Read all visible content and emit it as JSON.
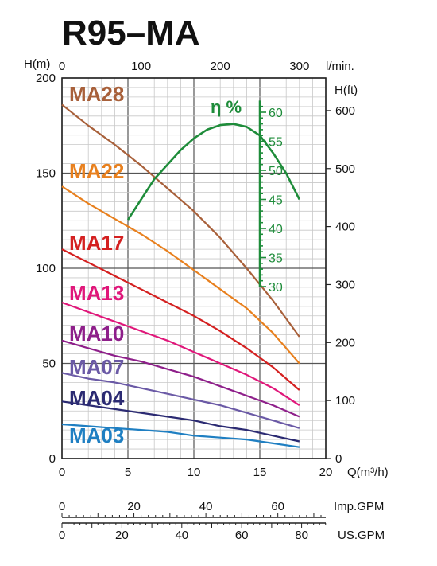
{
  "chart_data": {
    "type": "line",
    "title": "R95–MA",
    "xlabel": "Q(m³/h)",
    "x_top_label": "l/min.",
    "ylabel_left": "H(m)",
    "ylabel_right": "H(ft)",
    "xlim": [
      0,
      20
    ],
    "ylim": [
      0,
      200
    ],
    "y2lim_ft": [
      0,
      656.2
    ],
    "grid": true,
    "x_ticks": [
      "0",
      "5",
      "10",
      "15",
      "20"
    ],
    "x_top_ticks": [
      "0",
      "100",
      "200",
      "300"
    ],
    "y_ticks": [
      "0",
      "50",
      "100",
      "150",
      "200"
    ],
    "y_right_ticks": [
      "0",
      "100",
      "200",
      "300",
      "400",
      "500",
      "600"
    ],
    "series": [
      {
        "name": "MA28",
        "color": "#a8603a",
        "x": [
          0,
          2,
          4,
          6,
          8,
          10,
          12,
          14,
          16,
          18
        ],
        "y": [
          186,
          175,
          165,
          154,
          142,
          130,
          116,
          100,
          83,
          64
        ]
      },
      {
        "name": "MA22",
        "color": "#e8801e",
        "x": [
          0,
          2,
          4,
          6,
          8,
          10,
          12,
          14,
          16,
          18
        ],
        "y": [
          143,
          134,
          126,
          118,
          109,
          99,
          89,
          79,
          66,
          50
        ]
      },
      {
        "name": "MA17",
        "color": "#d42020",
        "x": [
          0,
          2,
          4,
          6,
          8,
          10,
          12,
          14,
          16,
          18
        ],
        "y": [
          110,
          103,
          96,
          89,
          82,
          75,
          67,
          58,
          48,
          36
        ]
      },
      {
        "name": "MA13",
        "color": "#e0177a",
        "x": [
          0,
          2,
          4,
          6,
          8,
          10,
          12,
          14,
          16,
          18
        ],
        "y": [
          82,
          77,
          72,
          67,
          62,
          56,
          50,
          44,
          37,
          28
        ]
      },
      {
        "name": "MA10",
        "color": "#8e1f8a",
        "x": [
          0,
          2,
          4,
          6,
          8,
          10,
          12,
          14,
          16,
          18
        ],
        "y": [
          62,
          58,
          54,
          51,
          47,
          43,
          38,
          33,
          28,
          22
        ]
      },
      {
        "name": "MA07",
        "color": "#6b5aa6",
        "x": [
          0,
          2,
          4,
          6,
          8,
          10,
          12,
          14,
          16,
          18
        ],
        "y": [
          45,
          42,
          40,
          37,
          34,
          31,
          28,
          24,
          20,
          16
        ]
      },
      {
        "name": "MA04",
        "color": "#2b2a72",
        "x": [
          0,
          2,
          4,
          6,
          8,
          10,
          12,
          14,
          16,
          18
        ],
        "y": [
          30,
          28,
          26,
          24,
          22,
          20,
          17,
          15,
          12,
          9
        ]
      },
      {
        "name": "MA03",
        "color": "#1f7fc2",
        "x": [
          0,
          2,
          4,
          6,
          8,
          10,
          12,
          14,
          16,
          18
        ],
        "y": [
          18,
          17,
          16,
          15,
          14,
          12,
          11,
          10,
          8,
          6
        ]
      }
    ],
    "efficiency": {
      "label": "η %",
      "color": "#1e8c3a",
      "ticks": [
        "30",
        "35",
        "40",
        "45",
        "50",
        "55",
        "60"
      ],
      "range": [
        30,
        62
      ],
      "x": [
        5,
        6,
        7,
        8,
        9,
        10,
        11,
        12,
        13,
        14,
        15,
        16,
        17,
        18
      ],
      "y": [
        41.5,
        45,
        48.5,
        51,
        53.5,
        55.5,
        57,
        57.8,
        58,
        57.5,
        56,
        53,
        49.5,
        45
      ]
    },
    "imp_gpm_label": "Imp.GPM",
    "imp_gpm_ticks": [
      "0",
      "20",
      "40",
      "60"
    ],
    "us_gpm_label": "US.GPM",
    "us_gpm_ticks": [
      "0",
      "20",
      "40",
      "60",
      "80"
    ]
  }
}
